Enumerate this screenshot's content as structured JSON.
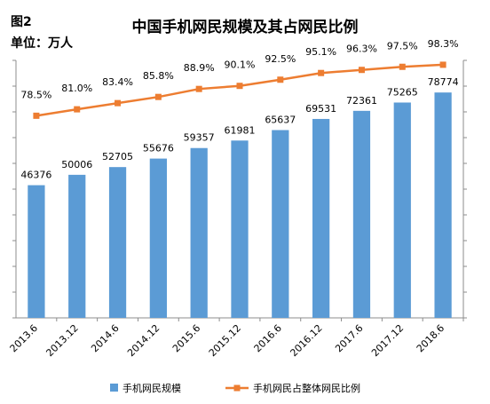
{
  "figure_label": "图2",
  "unit_label": "单位：万人",
  "chart_data": {
    "type": "bar",
    "title": "中国手机网民规模及其占网民比例",
    "categories": [
      "2013.6",
      "2013.12",
      "2014.6",
      "2014.12",
      "2015.6",
      "2015.12",
      "2016.6",
      "2016.12",
      "2017.6",
      "2017.12",
      "2018.6"
    ],
    "series": [
      {
        "name": "手机网民规模",
        "type": "bar",
        "axis": "left",
        "color": "#5b9bd5",
        "values": [
          46376,
          50006,
          52705,
          55676,
          59357,
          61981,
          65637,
          69531,
          72361,
          75265,
          78774
        ]
      },
      {
        "name": "手机网民占整体网民比例",
        "type": "line",
        "axis": "right",
        "color": "#ed7d31",
        "values": [
          78.5,
          81.0,
          83.4,
          85.8,
          88.9,
          90.1,
          92.5,
          95.1,
          96.3,
          97.5,
          98.3
        ],
        "labels": [
          "78.5%",
          "81.0%",
          "83.4%",
          "85.8%",
          "88.9%",
          "90.1%",
          "92.5%",
          "95.1%",
          "96.3%",
          "97.5%",
          "98.3%"
        ]
      }
    ],
    "bar_labels": [
      "46376",
      "50006",
      "52705",
      "55676",
      "59357",
      "61981",
      "65637",
      "69531",
      "72361",
      "75265",
      "78774"
    ],
    "left_ylim": [
      0,
      90000
    ],
    "right_ylim": [
      0,
      100
    ],
    "ticks": 10,
    "grid": false,
    "legend_position": "bottom"
  }
}
